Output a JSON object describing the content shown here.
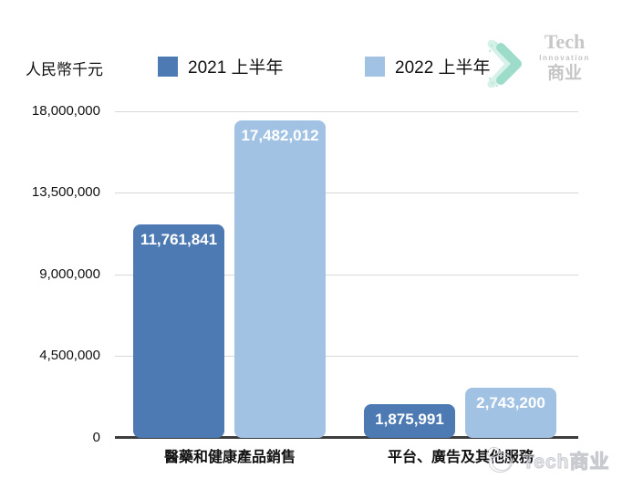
{
  "header": {
    "unit_label": "人民幣千元"
  },
  "legend": [
    {
      "label": "2021 上半年",
      "color": "#4d7ab2"
    },
    {
      "label": "2022 上半年",
      "color": "#a2c2e4"
    }
  ],
  "logo": {
    "line1": "Tech",
    "line2": "Innovation",
    "line3": "商业",
    "chevron_color": "#9ddcc9",
    "chevron_color_light": "#d6f1e8"
  },
  "watermark": {
    "text": "Tech商业"
  },
  "chart_data": {
    "type": "bar",
    "title": "",
    "ylabel": "人民幣千元",
    "categories": [
      "醫藥和健康產品銷售",
      "平台、廣告及其他服務"
    ],
    "series": [
      {
        "name": "2021 上半年",
        "color": "#4d7ab2",
        "values": [
          11761841,
          1875991
        ],
        "labels": [
          "11,761,841",
          "1,875,991"
        ]
      },
      {
        "name": "2022 上半年",
        "color": "#a2c2e4",
        "values": [
          17482012,
          2743200
        ],
        "labels": [
          "17,482,012",
          "2,743,200"
        ]
      }
    ],
    "y_ticks": [
      {
        "value": 18000000,
        "label": "18,000,000"
      },
      {
        "value": 13500000,
        "label": "13,500,000"
      },
      {
        "value": 9000000,
        "label": "9,000,000"
      },
      {
        "value": 4500000,
        "label": "4,500,000"
      },
      {
        "value": 0,
        "label": "0"
      }
    ],
    "ylim": [
      0,
      18000000
    ],
    "grid": true,
    "legend_position": "top"
  }
}
